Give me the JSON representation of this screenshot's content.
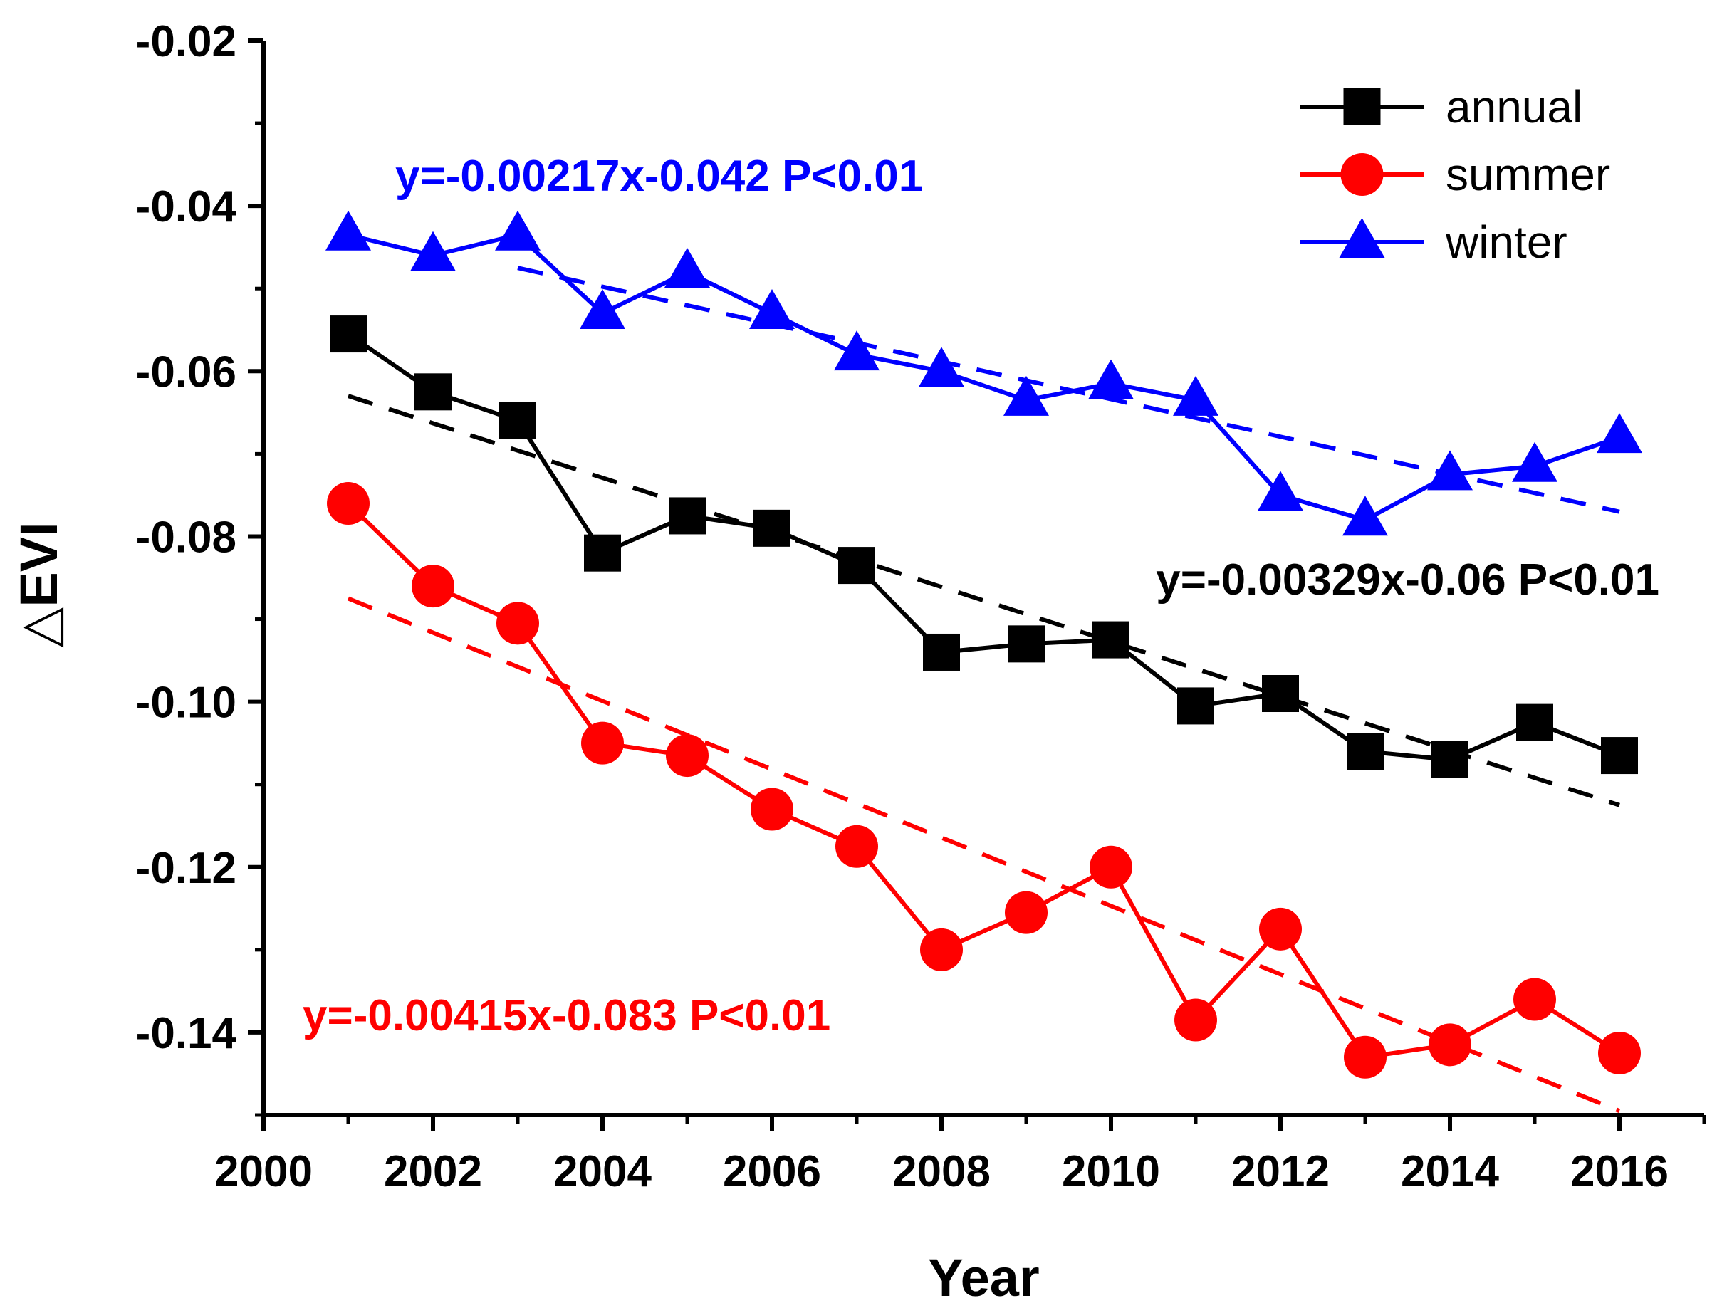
{
  "chart_data": {
    "type": "line",
    "xlabel": "Year",
    "ylabel": "△EVI",
    "xlim": [
      2000,
      2017
    ],
    "ylim": [
      -0.15,
      -0.02
    ],
    "x_ticks": [
      {
        "value": 2000,
        "label": "2000"
      },
      {
        "value": 2002,
        "label": "2002"
      },
      {
        "value": 2004,
        "label": "2004"
      },
      {
        "value": 2006,
        "label": "2006"
      },
      {
        "value": 2008,
        "label": "2008"
      },
      {
        "value": 2010,
        "label": "2010"
      },
      {
        "value": 2012,
        "label": "2012"
      },
      {
        "value": 2014,
        "label": "2014"
      },
      {
        "value": 2016,
        "label": "2016"
      }
    ],
    "y_ticks": [
      {
        "value": -0.02,
        "label": "-0.02"
      },
      {
        "value": -0.04,
        "label": "-0.04"
      },
      {
        "value": -0.06,
        "label": "-0.06"
      },
      {
        "value": -0.08,
        "label": "-0.08"
      },
      {
        "value": -0.1,
        "label": "-0.10"
      },
      {
        "value": -0.12,
        "label": "-0.12"
      },
      {
        "value": -0.14,
        "label": "-0.14"
      }
    ],
    "legend_position": "top-right",
    "x": [
      2001,
      2002,
      2003,
      2004,
      2005,
      2006,
      2007,
      2008,
      2009,
      2010,
      2011,
      2012,
      2013,
      2014,
      2015,
      2016
    ],
    "series": [
      {
        "name": "annual",
        "color": "#000000",
        "marker": "square",
        "values": [
          -0.0555,
          -0.0625,
          -0.066,
          -0.082,
          -0.0775,
          -0.079,
          -0.0835,
          -0.094,
          -0.093,
          -0.0925,
          -0.1005,
          -0.099,
          -0.106,
          -0.107,
          -0.1025,
          -0.1065
        ],
        "trend": {
          "equation": "y=-0.00329x-0.06 P<0.01",
          "start": {
            "x": 2001,
            "y": -0.063
          },
          "end": {
            "x": 2016,
            "y": -0.1125
          }
        }
      },
      {
        "name": "summer",
        "color": "#ff0000",
        "marker": "circle",
        "values": [
          -0.076,
          -0.086,
          -0.0905,
          -0.105,
          -0.1065,
          -0.113,
          -0.1175,
          -0.13,
          -0.1255,
          -0.12,
          -0.1385,
          -0.1275,
          -0.143,
          -0.1415,
          -0.136,
          -0.1425
        ],
        "trend": {
          "equation": "y=-0.00415x-0.083 P<0.01",
          "start": {
            "x": 2001,
            "y": -0.0875
          },
          "end": {
            "x": 2016,
            "y": -0.1495
          }
        }
      },
      {
        "name": "winter",
        "color": "#0000ff",
        "marker": "triangle",
        "values": [
          -0.0435,
          -0.046,
          -0.0435,
          -0.053,
          -0.048,
          -0.053,
          -0.058,
          -0.06,
          -0.0635,
          -0.0615,
          -0.0635,
          -0.075,
          -0.078,
          -0.0725,
          -0.0715,
          -0.068
        ],
        "trend": {
          "equation": "y=-0.00217x-0.042 P<0.01",
          "start": {
            "x": 2003,
            "y": -0.0475
          },
          "end": {
            "x": 2016,
            "y": -0.077
          }
        }
      }
    ]
  }
}
